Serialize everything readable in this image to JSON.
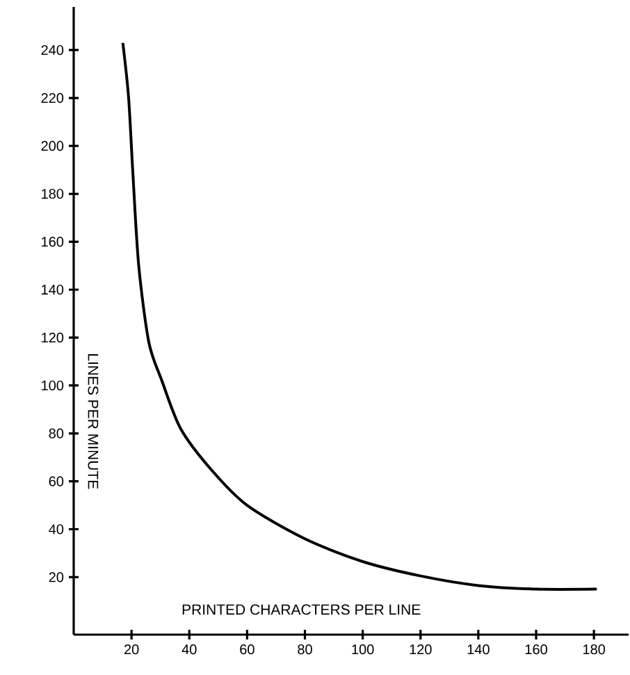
{
  "chart_data": {
    "type": "line",
    "xlabel": "PRINTED CHARACTERS PER LINE",
    "ylabel": "LINES PER MINUTE",
    "xlim": [
      0,
      192
    ],
    "ylim": [
      -4,
      258
    ],
    "xticks": [
      20,
      40,
      60,
      80,
      100,
      120,
      140,
      160,
      180
    ],
    "yticks": [
      20,
      40,
      60,
      80,
      100,
      120,
      140,
      160,
      180,
      200,
      220,
      240
    ],
    "series": [
      {
        "color": "#000000",
        "x": [
          17,
          19,
          20.5,
          22.5,
          26,
          30.5,
          37,
          47.5,
          60,
          80,
          100,
          120,
          140,
          160,
          181
        ],
        "values": [
          243,
          220,
          188,
          150,
          118,
          102,
          82,
          65,
          50,
          36,
          26.5,
          20.5,
          16.5,
          15,
          15
        ]
      }
    ]
  }
}
